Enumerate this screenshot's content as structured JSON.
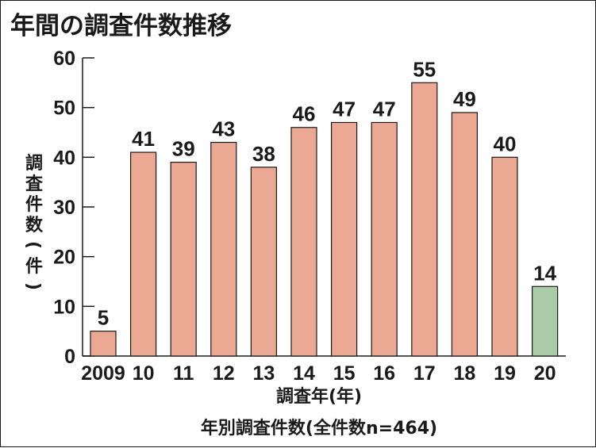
{
  "chart_data": {
    "type": "bar",
    "title": "年間の調査件数推移",
    "xlabel": "調査年(年)",
    "ylabel": "調査件数(件)",
    "note": "年別調査件数(全件数n=464)",
    "categories": [
      "2009",
      "10",
      "11",
      "12",
      "13",
      "14",
      "15",
      "16",
      "17",
      "18",
      "19",
      "20"
    ],
    "values": [
      5,
      41,
      39,
      43,
      38,
      46,
      47,
      47,
      55,
      49,
      40,
      14
    ],
    "ylim": [
      0,
      60
    ],
    "yticks": [
      0,
      10,
      20,
      30,
      40,
      50,
      60
    ],
    "grid": false,
    "colors": {
      "bar": "#eba893",
      "highlight_bar": "#a9cba6",
      "highlight_category": "20",
      "outline": "#1a1a1a"
    }
  }
}
